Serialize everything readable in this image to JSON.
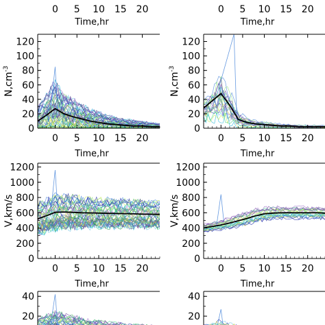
{
  "palette": [
    "#1f2aa8",
    "#3f7fd8",
    "#20b7d8",
    "#3fd28a",
    "#8ee07a",
    "#c9ea5a",
    "#6b3f9e",
    "#9b6fc9",
    "#2f9f4f",
    "#6fc6e8",
    "#4b4b8b",
    "#d0d040"
  ],
  "chart_data": [
    {
      "type": "line",
      "position": "top-left",
      "xlabel": "Time,hr",
      "ylabel": "N,cm",
      "ylabel_sup": "-3",
      "xlim": [
        -4,
        24
      ],
      "ylim": [
        0,
        130
      ],
      "xticks": [
        0,
        5,
        10,
        15,
        20
      ],
      "yticks": [
        0,
        20,
        40,
        60,
        80,
        100,
        120
      ],
      "top_axis_xticks": [
        0,
        5,
        10,
        15,
        20
      ],
      "top_axis_label": "Time,hr",
      "mean_series": {
        "x": [
          -4,
          -2,
          0,
          2,
          4,
          6,
          8,
          10,
          12,
          14,
          16,
          18,
          20,
          22,
          24
        ],
        "y": [
          10,
          18,
          27,
          20,
          16,
          13,
          10,
          8,
          6,
          5,
          4,
          3,
          3,
          2,
          2
        ]
      },
      "individual_envelope": {
        "x": [
          -4,
          -2,
          0,
          2,
          4,
          6,
          8,
          10,
          12,
          14,
          16,
          18,
          20,
          22,
          24
        ],
        "median": [
          12,
          20,
          28,
          22,
          17,
          14,
          11,
          9,
          7,
          6,
          5,
          4,
          3,
          3,
          2
        ],
        "spread": [
          20,
          30,
          40,
          30,
          26,
          22,
          18,
          15,
          12,
          10,
          9,
          8,
          7,
          6,
          5
        ],
        "count": 45,
        "max_peak": 85
      }
    },
    {
      "type": "line",
      "position": "top-right",
      "xlabel": "Time,hr",
      "ylabel": "N,cm",
      "ylabel_sup": "-3",
      "xlim": [
        -4,
        24
      ],
      "ylim": [
        0,
        130
      ],
      "xticks": [
        0,
        5,
        10,
        15,
        20
      ],
      "yticks": [
        0,
        20,
        40,
        60,
        80,
        100,
        120
      ],
      "top_axis_xticks": [
        0,
        5,
        10,
        15,
        20
      ],
      "top_axis_label": "Time,hr",
      "mean_series": {
        "x": [
          -4,
          -2,
          0,
          2,
          4,
          6,
          8,
          10,
          12,
          14,
          16,
          18,
          20,
          22,
          24
        ],
        "y": [
          28,
          38,
          48,
          32,
          12,
          8,
          6,
          5,
          4,
          3,
          3,
          2,
          2,
          2,
          2
        ]
      },
      "individual_envelope": {
        "x": [
          -4,
          -2,
          0,
          2,
          4,
          6,
          8,
          10,
          12,
          14,
          16,
          18,
          20,
          22,
          24
        ],
        "median": [
          25,
          35,
          45,
          30,
          12,
          8,
          6,
          5,
          4,
          3,
          3,
          2,
          2,
          2,
          2
        ],
        "spread": [
          18,
          28,
          40,
          30,
          14,
          8,
          6,
          5,
          4,
          4,
          3,
          3,
          3,
          3,
          3
        ],
        "count": 20,
        "max_peak": 130
      }
    },
    {
      "type": "line",
      "position": "middle-left",
      "xlabel": "Time,hr",
      "ylabel": "V,km/s",
      "xlim": [
        -4,
        24
      ],
      "ylim": [
        0,
        1250
      ],
      "xticks": [
        0,
        5,
        10,
        15,
        20
      ],
      "yticks": [
        0,
        200,
        400,
        600,
        800,
        1000,
        1200
      ],
      "mean_series": {
        "x": [
          -4,
          -2,
          0,
          2,
          4,
          6,
          8,
          10,
          12,
          14,
          16,
          18,
          20,
          22,
          24
        ],
        "y": [
          520,
          560,
          605,
          610,
          605,
          600,
          598,
          595,
          593,
          590,
          588,
          585,
          582,
          580,
          578
        ]
      },
      "individual_envelope": {
        "x": [
          -4,
          -2,
          0,
          2,
          4,
          6,
          8,
          10,
          12,
          14,
          16,
          18,
          20,
          22,
          24
        ],
        "median": [
          520,
          560,
          605,
          610,
          605,
          600,
          598,
          595,
          593,
          590,
          588,
          585,
          582,
          580,
          578
        ],
        "spread": [
          220,
          230,
          240,
          240,
          230,
          220,
          210,
          205,
          200,
          200,
          195,
          195,
          190,
          190,
          190
        ],
        "count": 45,
        "max_peak": 1160
      }
    },
    {
      "type": "line",
      "position": "middle-right",
      "xlabel": "Time,hr",
      "ylabel": "V,km/s",
      "xlim": [
        -4,
        24
      ],
      "ylim": [
        0,
        1250
      ],
      "xticks": [
        0,
        5,
        10,
        15,
        20
      ],
      "yticks": [
        0,
        200,
        400,
        600,
        800,
        1000,
        1200
      ],
      "mean_series": {
        "x": [
          -4,
          -2,
          0,
          2,
          4,
          6,
          8,
          10,
          12,
          14,
          16,
          18,
          20,
          22,
          24
        ],
        "y": [
          400,
          420,
          440,
          465,
          495,
          525,
          560,
          585,
          595,
          600,
          600,
          600,
          600,
          600,
          595
        ]
      },
      "individual_envelope": {
        "x": [
          -4,
          -2,
          0,
          2,
          4,
          6,
          8,
          10,
          12,
          14,
          16,
          18,
          20,
          22,
          24
        ],
        "median": [
          400,
          420,
          440,
          465,
          495,
          525,
          560,
          585,
          595,
          600,
          600,
          600,
          600,
          600,
          595
        ],
        "spread": [
          60,
          70,
          80,
          90,
          100,
          110,
          110,
          100,
          100,
          95,
          95,
          95,
          95,
          95,
          95
        ],
        "count": 20,
        "max_peak": 840
      }
    },
    {
      "type": "line",
      "position": "bottom-left",
      "ylim": [
        0,
        45
      ],
      "xlim": [
        -4,
        24
      ],
      "yticks": [
        20,
        40
      ],
      "partial": true,
      "individual_envelope": {
        "x": [
          -4,
          -2,
          0,
          2,
          4,
          6,
          8,
          10,
          12,
          14,
          16,
          18,
          20,
          22,
          24
        ],
        "median": [
          8,
          10,
          12,
          10,
          9,
          8,
          7,
          7,
          6,
          6,
          5,
          5,
          5,
          4,
          4
        ],
        "spread": [
          10,
          12,
          14,
          13,
          12,
          11,
          10,
          9,
          9,
          8,
          8,
          7,
          7,
          7,
          7
        ],
        "count": 40,
        "max_peak": 42
      }
    },
    {
      "type": "line",
      "position": "bottom-right",
      "ylim": [
        0,
        45
      ],
      "xlim": [
        -4,
        24
      ],
      "yticks": [
        20,
        40
      ],
      "partial": true,
      "individual_envelope": {
        "x": [
          -4,
          -2,
          0,
          2,
          4,
          6,
          8,
          10,
          12,
          14,
          16,
          18,
          20,
          22,
          24
        ],
        "median": [
          5,
          6,
          7,
          6,
          5,
          5,
          4,
          4,
          4,
          3,
          3,
          3,
          3,
          3,
          3
        ],
        "spread": [
          6,
          8,
          10,
          8,
          6,
          5,
          4,
          4,
          4,
          3,
          3,
          3,
          3,
          3,
          3
        ],
        "count": 15,
        "max_peak": 27
      }
    }
  ]
}
